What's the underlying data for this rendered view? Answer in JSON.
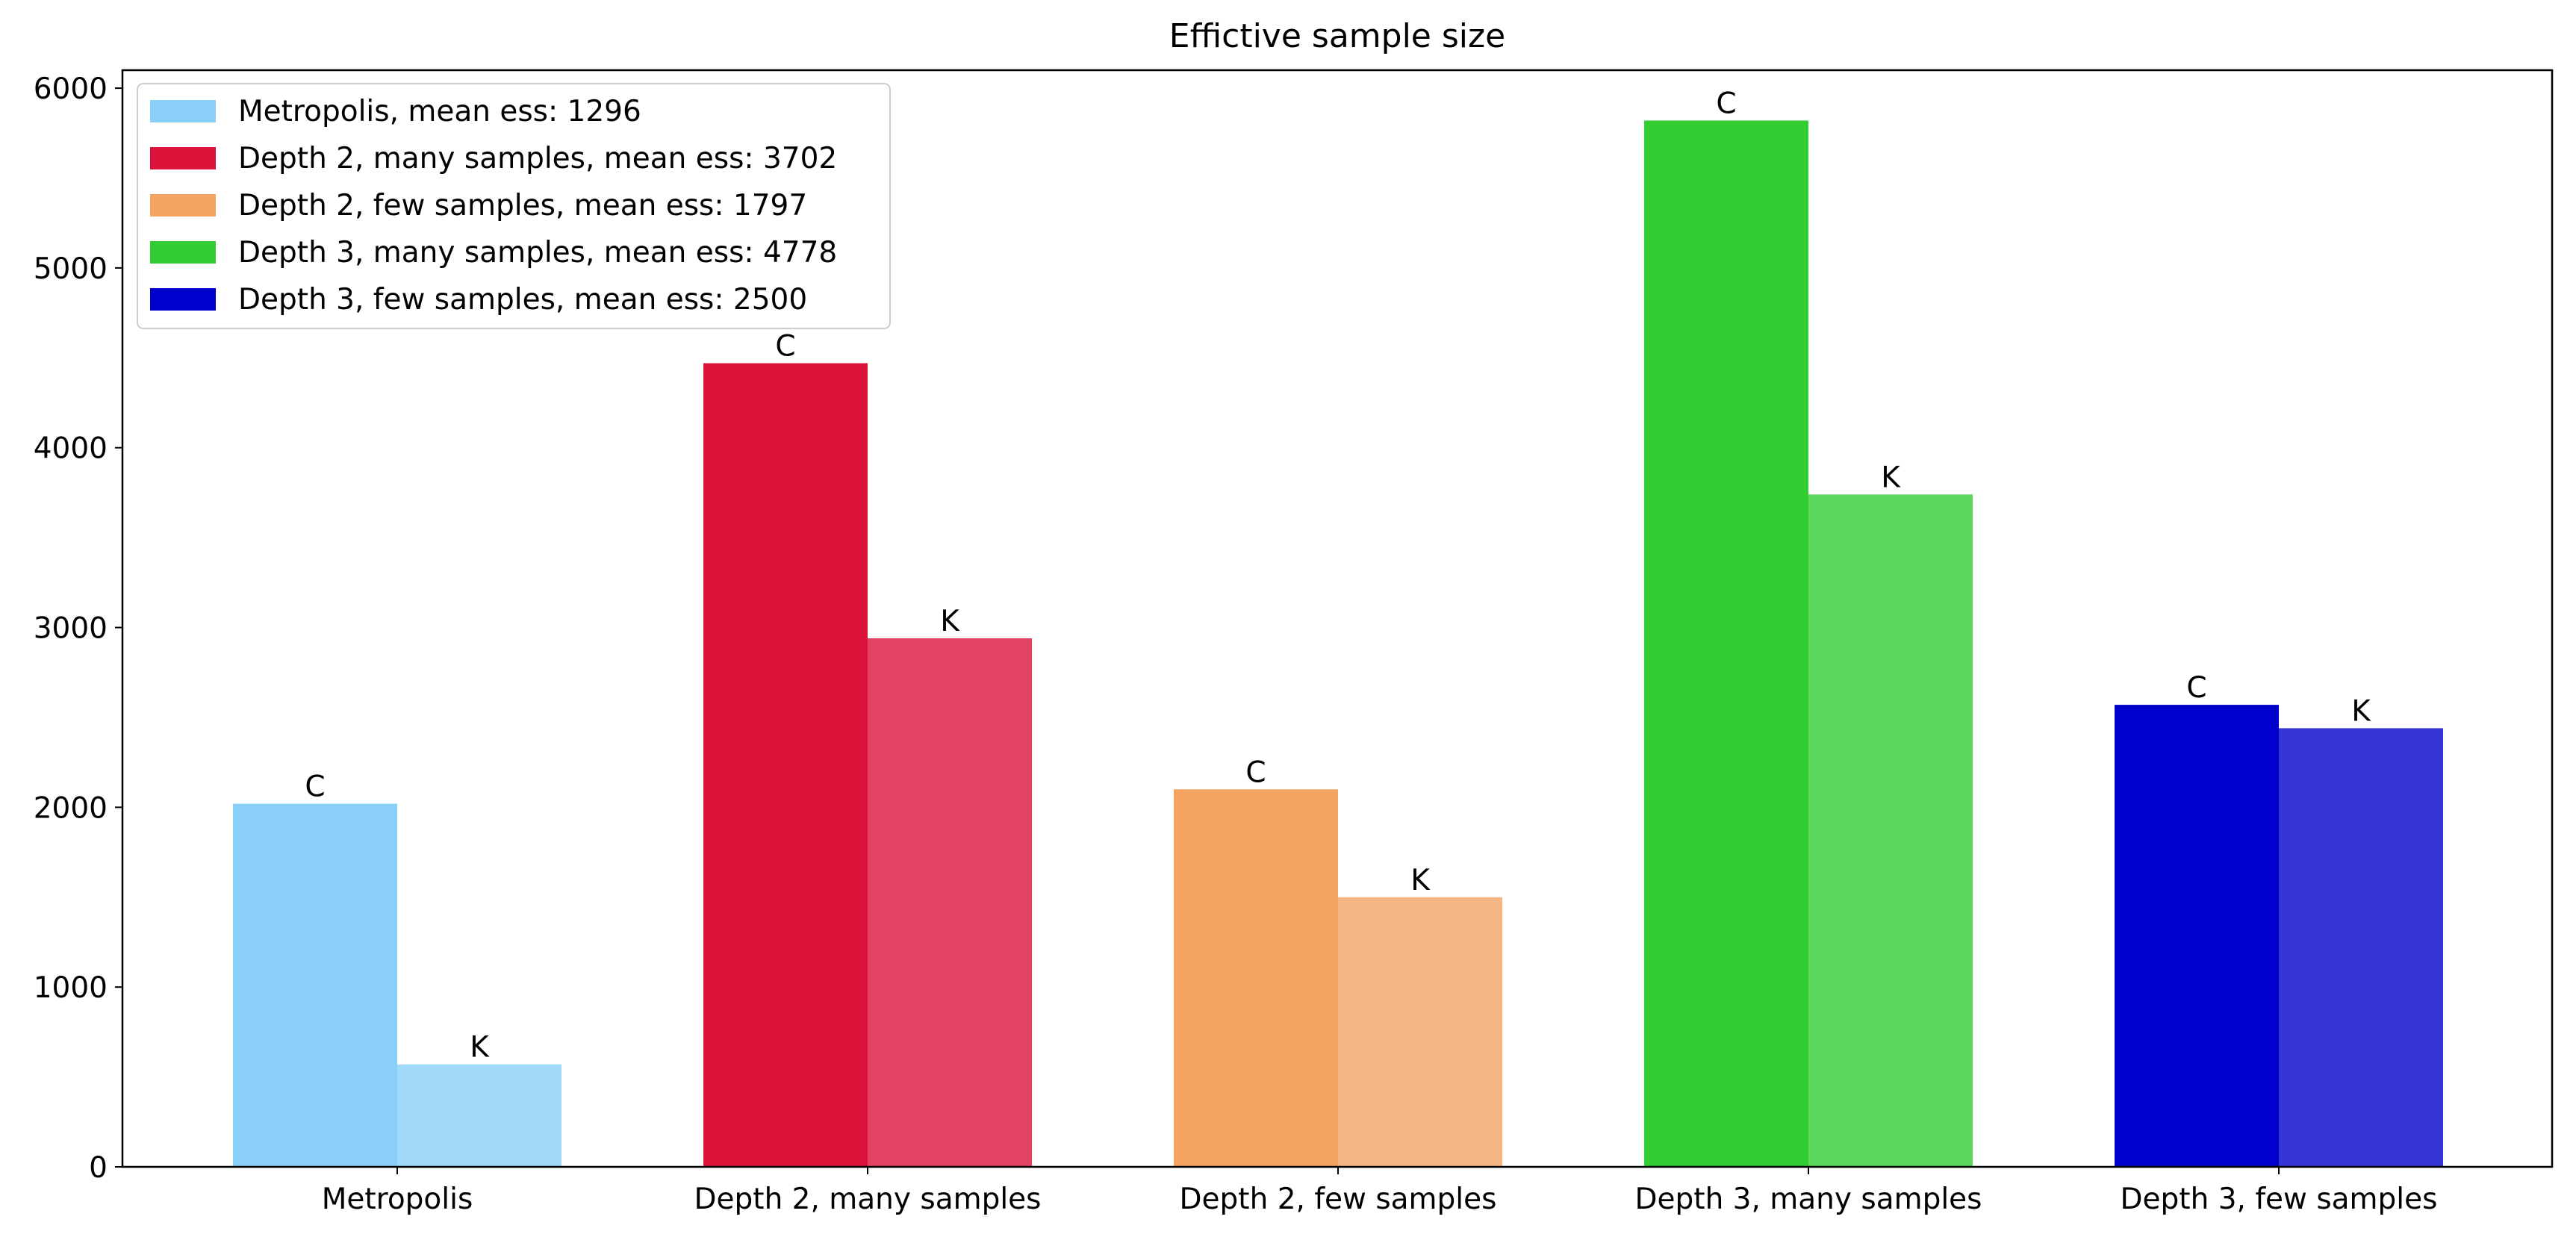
{
  "chart_data": {
    "type": "bar",
    "title": "Effictive sample size",
    "xlabel": "",
    "ylabel": "",
    "ylim": [
      0,
      6100
    ],
    "yticks": [
      0,
      1000,
      2000,
      3000,
      4000,
      5000,
      6000
    ],
    "grid": false,
    "legend_position": "top-left",
    "categories": [
      "Metropolis",
      "Depth 2, many samples",
      "Depth 2, few samples",
      "Depth 3, many samples",
      "Depth 3, few samples"
    ],
    "bar_labels": [
      "C",
      "K"
    ],
    "groups": [
      {
        "category": "Metropolis",
        "C": 2020,
        "K": 570,
        "color": "#89CFF8",
        "color_k": "#A1D9FA",
        "legend": "Metropolis, mean ess: 1296"
      },
      {
        "category": "Depth 2, many samples",
        "C": 4470,
        "K": 2940,
        "color": "#DC143C",
        "color_k": "#E34363",
        "legend": "Depth 2, many samples, mean ess: 3702"
      },
      {
        "category": "Depth 2, few samples",
        "C": 2100,
        "K": 1500,
        "color": "#F4A460",
        "color_k": "#F5B683",
        "legend": "Depth 2, few samples, mean ess: 1797"
      },
      {
        "category": "Depth 3, many samples",
        "C": 5820,
        "K": 3740,
        "color": "#32CD32",
        "color_k": "#5BD75B",
        "legend": "Depth 3, many samples, mean ess: 4778"
      },
      {
        "category": "Depth 3, few samples",
        "C": 2570,
        "K": 2440,
        "color": "#0000CD",
        "color_k": "#3636D8",
        "legend": "Depth 3, few samples, mean ess: 2500"
      }
    ]
  }
}
